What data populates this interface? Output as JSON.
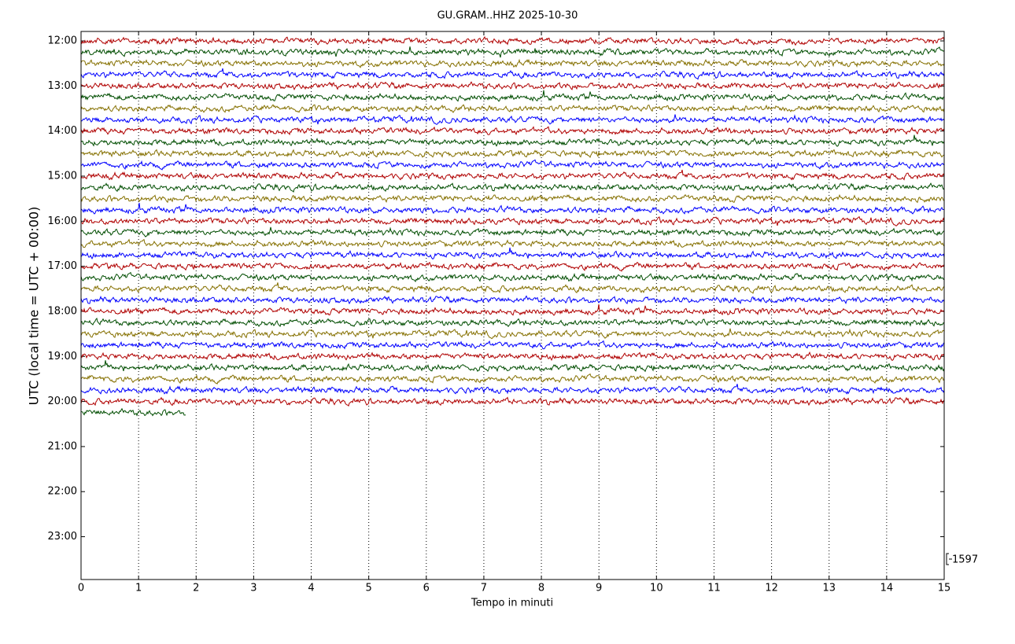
{
  "chart_data": {
    "type": "helicorder",
    "title": "GU.GRAM..HHZ 2025-10-30",
    "xlabel": "Tempo in minuti",
    "ylabel": "UTC (local time = UTC + 00:00)",
    "xlim": [
      0,
      15
    ],
    "xticks": [
      0,
      1,
      2,
      3,
      4,
      5,
      6,
      7,
      8,
      9,
      10,
      11,
      12,
      13,
      14,
      15
    ],
    "ylim": [
      11.79,
      23.95
    ],
    "y_inverted": true,
    "yticks": [
      {
        "value": 12,
        "label": "12:00"
      },
      {
        "value": 13,
        "label": "13:00"
      },
      {
        "value": 14,
        "label": "14:00"
      },
      {
        "value": 15,
        "label": "15:00"
      },
      {
        "value": 16,
        "label": "16:00"
      },
      {
        "value": 17,
        "label": "17:00"
      },
      {
        "value": 18,
        "label": "18:00"
      },
      {
        "value": 19,
        "label": "19:00"
      },
      {
        "value": 20,
        "label": "20:00"
      },
      {
        "value": 21,
        "label": "21:00"
      },
      {
        "value": 22,
        "label": "22:00"
      },
      {
        "value": 23,
        "label": "23:00"
      }
    ],
    "xgrid": true,
    "trace_offsets": [
      12,
      12.25,
      12.5,
      12.75,
      13,
      13.25,
      13.5,
      13.75,
      14,
      14.25,
      14.5,
      14.75,
      15,
      15.25,
      15.5,
      15.75,
      16,
      16.25,
      16.5,
      16.75,
      17,
      17.25,
      17.5,
      17.75,
      18,
      18.25,
      18.5,
      18.75,
      19,
      19.25,
      19.5,
      19.75,
      20,
      20.25
    ],
    "colors": [
      "#b00000",
      "#004d00",
      "#857000",
      "#0000ff"
    ],
    "last_trace_end": 1.83,
    "scale_label": 1597
  }
}
